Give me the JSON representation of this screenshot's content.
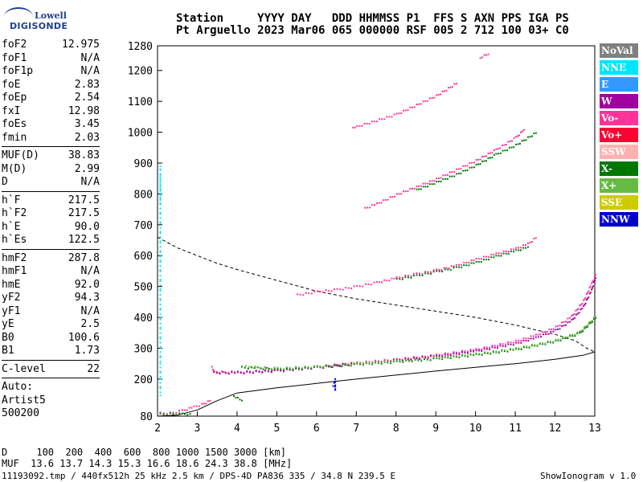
{
  "logo": {
    "line1": "Lowell",
    "line2": "DIGISONDE"
  },
  "header": {
    "line1": "Station     YYYY DAY   DDD HHMMSS P1  FFS S AXN PPS IGA PS",
    "line2": "Pt Arguello 2023 Mar06 065 000000 RSF 005 2 712 100 03+ C0"
  },
  "params": {
    "g1": [
      [
        "foF2",
        "12.975"
      ],
      [
        "foF1",
        "N/A"
      ],
      [
        "foF1p",
        "N/A"
      ],
      [
        "foE",
        "2.83"
      ],
      [
        "foEp",
        "2.54"
      ],
      [
        "fxI",
        "12.98"
      ],
      [
        "foEs",
        "3.45"
      ],
      [
        "fmin",
        "2.03"
      ]
    ],
    "g2": [
      [
        "MUF(D)",
        "38.83"
      ],
      [
        "M(D)",
        "2.99"
      ],
      [
        "D",
        "N/A"
      ]
    ],
    "g3": [
      [
        "h`F",
        "217.5"
      ],
      [
        "h`F2",
        "217.5"
      ],
      [
        "h`E",
        "90.0"
      ],
      [
        "h`Es",
        "122.5"
      ]
    ],
    "g4": [
      [
        "hmF2",
        "287.8"
      ],
      [
        "hmF1",
        "N/A"
      ],
      [
        "hmE",
        "92.0"
      ],
      [
        "yF2",
        "94.3"
      ],
      [
        "yF1",
        "N/A"
      ],
      [
        "yE",
        "2.5"
      ],
      [
        "B0",
        "100.6"
      ],
      [
        "B1",
        "1.73"
      ]
    ],
    "g5": [
      [
        "C-level",
        "22"
      ]
    ]
  },
  "auto": {
    "l1": "Auto:",
    "l2": "Artist5",
    "l3": "500200"
  },
  "legend": [
    {
      "label": "NoVal",
      "color": "#808080"
    },
    {
      "label": "NNE",
      "color": "#00e5ff"
    },
    {
      "label": "E",
      "color": "#3399ff"
    },
    {
      "label": "W",
      "color": "#a000a0"
    },
    {
      "label": "Vo-",
      "color": "#ff3399"
    },
    {
      "label": "Vo+",
      "color": "#ff0033"
    },
    {
      "label": "SSW",
      "color": "#ffb0b0"
    },
    {
      "label": "X-",
      "color": "#007700"
    },
    {
      "label": "X+",
      "color": "#66bb44"
    },
    {
      "label": "SSE",
      "color": "#cccc00"
    },
    {
      "label": "NNW",
      "color": "#0000cc"
    }
  ],
  "footer": {
    "d_row": "D     100  200  400  600  800 1000 1500 3000 [km]",
    "muf_row": "MUF  13.6 13.7 14.3 15.3 16.6 18.6 24.3 38.8 [MHz]",
    "info": "11193092.tmp / 440fx512h 25 kHz 2.5 km / DPS-4D PA836 335 / 34.8 N 239.5 E",
    "version": "ShowIonogram v 1.0"
  },
  "chart_data": {
    "type": "scatter",
    "xlim": [
      2,
      13
    ],
    "ylim": [
      80,
      1280
    ],
    "xticks": [
      2,
      3,
      4,
      5,
      6,
      7,
      8,
      9,
      10,
      11,
      12,
      13
    ],
    "yticks": [
      80,
      200,
      300,
      400,
      500,
      600,
      700,
      800,
      900,
      1000,
      1100,
      1200,
      1280
    ],
    "grid": false,
    "legend_position": "right",
    "series": [
      {
        "color": "#ff3399",
        "points": [
          [
            2.05,
            92
          ],
          [
            2.3,
            92
          ],
          [
            2.6,
            100
          ],
          [
            2.9,
            112
          ],
          [
            3.1,
            120
          ],
          [
            3.3,
            132
          ]
        ]
      },
      {
        "color": "#007700",
        "points": [
          [
            2.05,
            88
          ],
          [
            2.3,
            89
          ],
          [
            2.6,
            89
          ],
          [
            2.8,
            90
          ]
        ]
      },
      {
        "color": "#ff3399",
        "points": [
          [
            3.35,
            240
          ],
          [
            3.4,
            227
          ],
          [
            3.6,
            225
          ],
          [
            4.0,
            225
          ],
          [
            5.0,
            232
          ],
          [
            6.0,
            243
          ],
          [
            7.0,
            255
          ],
          [
            8.0,
            266
          ],
          [
            9.0,
            280
          ],
          [
            10.0,
            298
          ],
          [
            11.0,
            325
          ],
          [
            11.5,
            344
          ],
          [
            12.0,
            370
          ],
          [
            12.4,
            405
          ],
          [
            12.7,
            455
          ],
          [
            12.9,
            510
          ],
          [
            13.0,
            540
          ]
        ]
      },
      {
        "color": "#a000a0",
        "points": [
          [
            3.4,
            223
          ],
          [
            4.0,
            222
          ],
          [
            5.0,
            229
          ],
          [
            6.0,
            240
          ],
          [
            7.0,
            252
          ],
          [
            8.0,
            263
          ],
          [
            9.0,
            276
          ],
          [
            10.0,
            293
          ],
          [
            11.0,
            318
          ],
          [
            11.5,
            336
          ],
          [
            12.0,
            360
          ],
          [
            12.4,
            392
          ],
          [
            12.7,
            437
          ],
          [
            12.9,
            490
          ],
          [
            13.0,
            530
          ]
        ]
      },
      {
        "color": "#007700",
        "points": [
          [
            4.1,
            240
          ],
          [
            4.5,
            238
          ],
          [
            5.0,
            234
          ],
          [
            6.0,
            240
          ],
          [
            7.0,
            250
          ],
          [
            8.0,
            258
          ],
          [
            9.0,
            268
          ],
          [
            10.0,
            281
          ],
          [
            11.0,
            298
          ],
          [
            12.0,
            325
          ],
          [
            12.6,
            350
          ],
          [
            13.0,
            400
          ]
        ]
      },
      {
        "color": "#66bb44",
        "points": [
          [
            4.2,
            243
          ],
          [
            5.0,
            237
          ],
          [
            6.0,
            243
          ],
          [
            7.0,
            253
          ],
          [
            8.0,
            261
          ],
          [
            9.0,
            271
          ],
          [
            10.0,
            284
          ],
          [
            11.0,
            301
          ],
          [
            12.0,
            328
          ],
          [
            12.6,
            354
          ],
          [
            13.0,
            404
          ]
        ]
      },
      {
        "color": "#ff3399",
        "points": [
          [
            5.5,
            475
          ],
          [
            6.0,
            485
          ],
          [
            6.5,
            492
          ],
          [
            7.0,
            502
          ],
          [
            7.5,
            515
          ],
          [
            8.0,
            530
          ],
          [
            8.5,
            543
          ],
          [
            9.0,
            555
          ],
          [
            9.5,
            570
          ],
          [
            10.0,
            590
          ],
          [
            10.5,
            608
          ],
          [
            11.0,
            625
          ],
          [
            11.3,
            640
          ],
          [
            11.5,
            660
          ]
        ]
      },
      {
        "color": "#007700",
        "points": [
          [
            8.0,
            525
          ],
          [
            8.5,
            537
          ],
          [
            9.0,
            550
          ],
          [
            9.5,
            563
          ],
          [
            10.0,
            580
          ],
          [
            10.5,
            600
          ],
          [
            11.0,
            618
          ],
          [
            11.3,
            630
          ]
        ]
      },
      {
        "color": "#ff3399",
        "points": [
          [
            7.2,
            755
          ],
          [
            7.5,
            770
          ],
          [
            8.0,
            800
          ],
          [
            8.5,
            825
          ],
          [
            9.0,
            850
          ],
          [
            9.5,
            880
          ],
          [
            10.0,
            910
          ],
          [
            10.5,
            945
          ],
          [
            11.0,
            985
          ],
          [
            11.2,
            1010
          ]
        ]
      },
      {
        "color": "#007700",
        "points": [
          [
            8.5,
            815
          ],
          [
            9.0,
            840
          ],
          [
            9.5,
            865
          ],
          [
            10.0,
            895
          ],
          [
            10.5,
            930
          ],
          [
            11.0,
            960
          ],
          [
            11.5,
            1000
          ]
        ]
      },
      {
        "color": "#ff3399",
        "points": [
          [
            6.9,
            1015
          ],
          [
            7.0,
            1020
          ],
          [
            8.0,
            1060
          ],
          [
            8.5,
            1090
          ],
          [
            9.0,
            1120
          ],
          [
            9.5,
            1160
          ]
        ]
      },
      {
        "color": "#ff3399",
        "points": [
          [
            10.1,
            1240
          ],
          [
            10.2,
            1250
          ],
          [
            10.3,
            1255
          ]
        ]
      },
      {
        "color": "#00e5ff",
        "points": [
          [
            2.05,
            780
          ],
          [
            2.05,
            810
          ],
          [
            2.05,
            850
          ],
          [
            2.05,
            890
          ],
          [
            2.05,
            300
          ],
          [
            2.05,
            250
          ],
          [
            2.05,
            200
          ],
          [
            2.05,
            150
          ]
        ]
      },
      {
        "color": "#0000cc",
        "points": [
          [
            6.45,
            165
          ],
          [
            6.45,
            175
          ],
          [
            6.45,
            190
          ],
          [
            6.45,
            200
          ],
          [
            6.4,
            180
          ]
        ]
      },
      {
        "color": "#007700",
        "points": [
          [
            3.9,
            145
          ],
          [
            4.0,
            140
          ],
          [
            4.1,
            133
          ]
        ]
      }
    ],
    "profile_dashed": [
      [
        2.0,
        660
      ],
      [
        2.5,
        625
      ],
      [
        3.0,
        600
      ],
      [
        3.5,
        575
      ],
      [
        4.0,
        555
      ],
      [
        5.0,
        520
      ],
      [
        6.0,
        485
      ],
      [
        7.0,
        460
      ],
      [
        8.0,
        440
      ],
      [
        9.0,
        420
      ],
      [
        10.0,
        400
      ],
      [
        11.0,
        375
      ],
      [
        12.0,
        345
      ],
      [
        12.5,
        325
      ],
      [
        12.8,
        300
      ],
      [
        13.0,
        288
      ]
    ],
    "profile_solid": [
      [
        2.0,
        80
      ],
      [
        2.5,
        83
      ],
      [
        3.0,
        100
      ],
      [
        3.5,
        130
      ],
      [
        4.0,
        155
      ],
      [
        5.0,
        172
      ],
      [
        6.0,
        186
      ],
      [
        7.0,
        200
      ],
      [
        8.0,
        213
      ],
      [
        9.0,
        226
      ],
      [
        10.0,
        238
      ],
      [
        11.0,
        250
      ],
      [
        12.0,
        264
      ],
      [
        12.7,
        277
      ],
      [
        13.0,
        288
      ]
    ]
  }
}
